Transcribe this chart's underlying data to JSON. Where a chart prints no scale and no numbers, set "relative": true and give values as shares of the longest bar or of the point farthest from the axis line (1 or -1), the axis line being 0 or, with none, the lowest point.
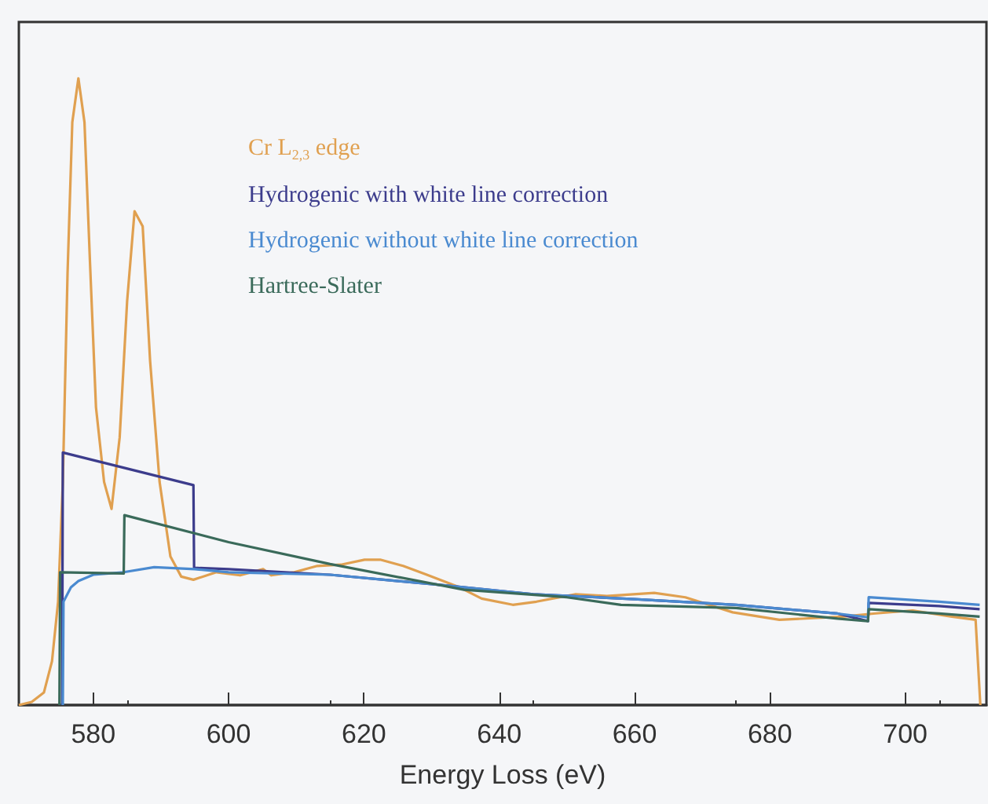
{
  "chart_data": {
    "type": "line",
    "relative": true,
    "xlabel": "Energy Loss (eV)",
    "xlim": [
      569,
      712
    ],
    "xticks": [
      580,
      600,
      620,
      640,
      660,
      680,
      700
    ],
    "grid": false,
    "legend": "top",
    "marker": "none",
    "line_style": "solid",
    "series": [
      {
        "name": "Cr L$_{2,3}$ edge",
        "color": "#e0a050",
        "x": [
          569,
          570.9,
          572.7,
          573.9,
          574.8,
          575.5,
          576.2,
          576.9,
          577.8,
          578.7,
          579.5,
          580.4,
          581.6,
          582.7,
          583.9,
          585,
          586.1,
          587.3,
          588.4,
          589.8,
          591.4,
          593,
          594.8,
          598.2,
          601.7,
          605.1,
          606.3,
          609.7,
          613.1,
          616.6,
          620.1,
          622.4,
          625.8,
          629.3,
          633.9,
          637.4,
          642,
          645.5,
          651.3,
          655.9,
          662.9,
          667.5,
          674.5,
          681.4,
          690.7,
          695.3,
          701.1,
          706.9,
          710.4,
          711.1
        ],
        "values": [
          0,
          0.005,
          0.02,
          0.07,
          0.165,
          0.356,
          0.69,
          0.93,
          1,
          0.93,
          0.71,
          0.475,
          0.356,
          0.313,
          0.427,
          0.644,
          0.788,
          0.764,
          0.549,
          0.356,
          0.237,
          0.205,
          0.2,
          0.212,
          0.207,
          0.217,
          0.207,
          0.212,
          0.222,
          0.224,
          0.232,
          0.232,
          0.222,
          0.208,
          0.189,
          0.17,
          0.16,
          0.165,
          0.177,
          0.174,
          0.179,
          0.172,
          0.148,
          0.136,
          0.141,
          0.146,
          0.151,
          0.141,
          0.136,
          0
        ]
      },
      {
        "name": "Hydrogenic with white line correction",
        "color": "#3c3c8c",
        "x": [
          575.4,
          575.5,
          594.8,
          594.9,
          600,
          615,
          630,
          645,
          660,
          675,
          690,
          694.5,
          694.6,
          705,
          711
        ],
        "values": [
          0,
          0.403,
          0.351,
          0.219,
          0.217,
          0.208,
          0.193,
          0.177,
          0.169,
          0.16,
          0.146,
          0.134,
          0.163,
          0.158,
          0.153
        ]
      },
      {
        "name": "Hydrogenic without white line correction",
        "color": "#4a8ad0",
        "x": [
          575.5,
          575.6,
          576.7,
          577.8,
          580,
          584.5,
          589,
          595,
          600,
          615,
          630,
          645,
          660,
          675,
          690,
          694.5,
          694.6,
          705,
          711
        ],
        "values": [
          0,
          0.165,
          0.188,
          0.198,
          0.208,
          0.212,
          0.22,
          0.217,
          0.212,
          0.208,
          0.193,
          0.177,
          0.169,
          0.16,
          0.146,
          0.14,
          0.172,
          0.165,
          0.16
        ]
      },
      {
        "name": "Hartree-Slater",
        "color": "#3a6a5a",
        "x": [
          575,
          575.1,
          584.5,
          584.6,
          600,
          615,
          634.8,
          650,
          658,
          675,
          690,
          694.5,
          694.6,
          705,
          711
        ],
        "values": [
          0,
          0.212,
          0.21,
          0.303,
          0.26,
          0.225,
          0.184,
          0.172,
          0.16,
          0.155,
          0.138,
          0.134,
          0.153,
          0.146,
          0.141
        ]
      }
    ]
  }
}
